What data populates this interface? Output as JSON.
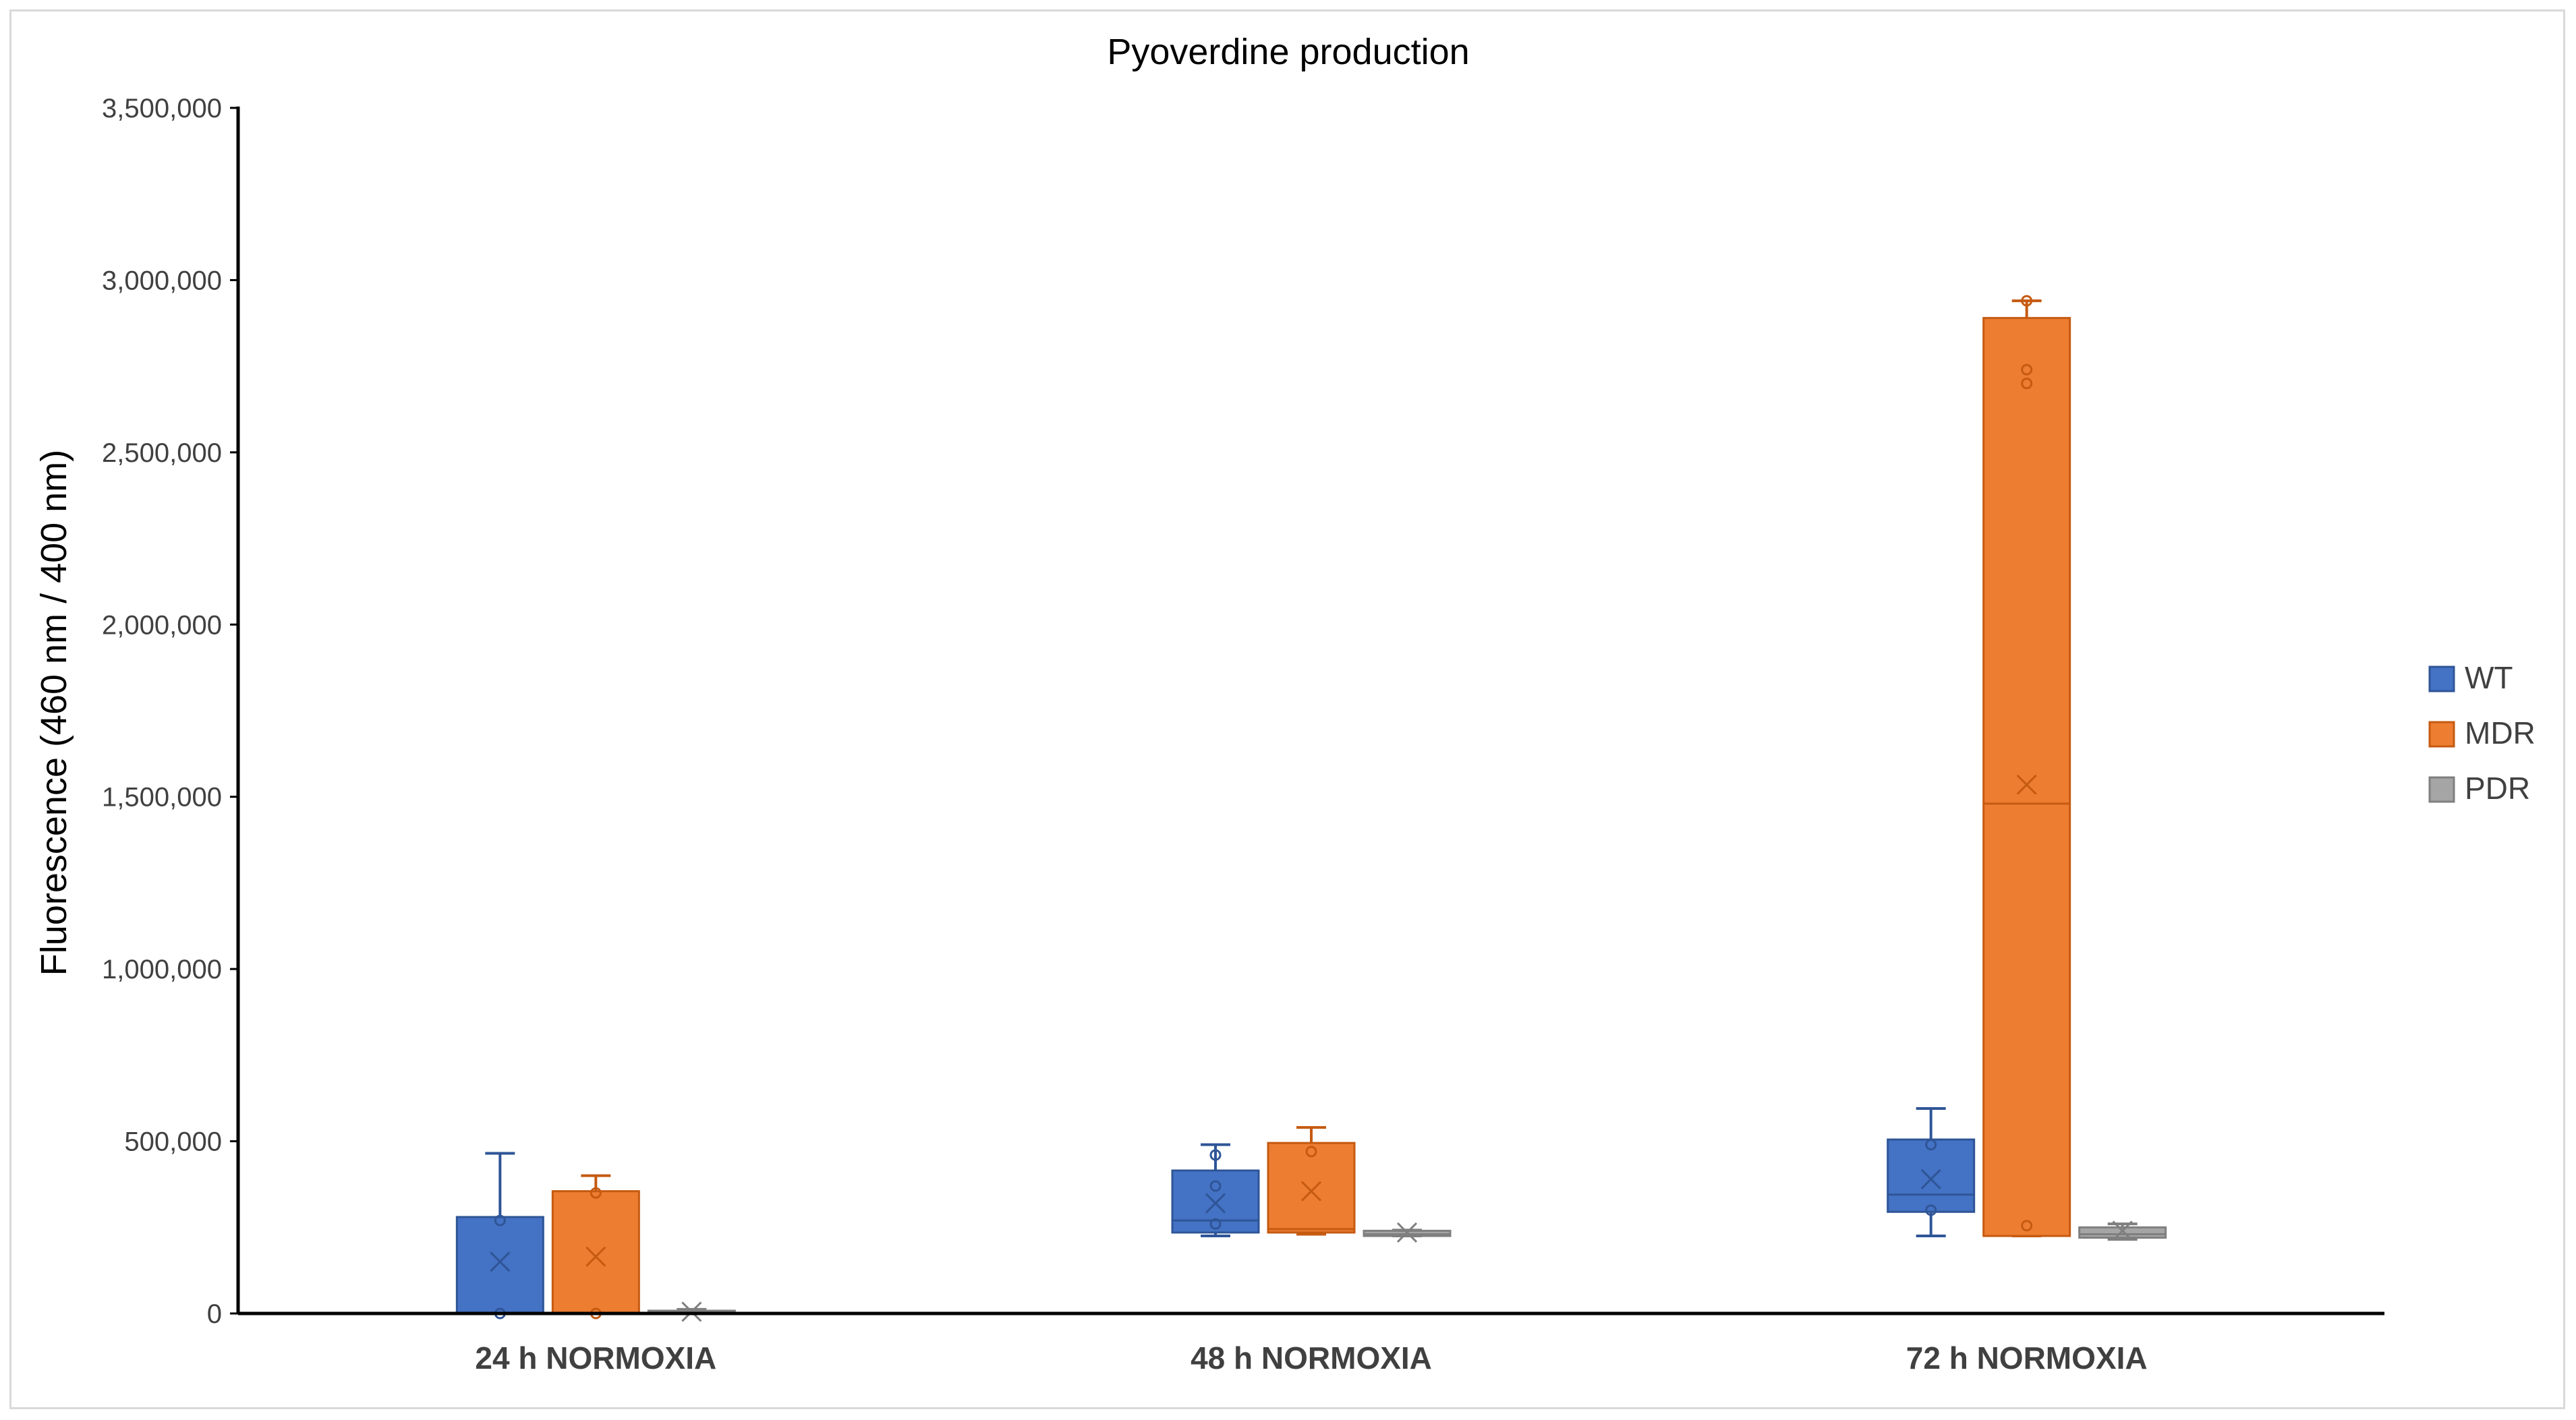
{
  "chart_data": {
    "type": "box",
    "title": "Pyoverdine production",
    "xlabel": "",
    "ylabel": "Fluorescence (460 nm / 400 nm)",
    "ylim": [
      0,
      3500000
    ],
    "yticks": [
      0,
      500000,
      1000000,
      1500000,
      2000000,
      2500000,
      3000000,
      3500000
    ],
    "ytick_labels": [
      "0",
      "500,000",
      "1,000,000",
      "1,500,000",
      "2,000,000",
      "2,500,000",
      "3,000,000",
      "3,500,000"
    ],
    "categories": [
      "24 h NORMOXIA",
      "48 h NORMOXIA",
      "72 h NORMOXIA"
    ],
    "legend_position": "right",
    "grid": false,
    "series": [
      {
        "name": "WT",
        "color": "#4472c4",
        "edge": "#2f5597",
        "boxes": [
          {
            "min": 0,
            "q1": 0,
            "median": 0,
            "q3": 280000,
            "max": 465000,
            "mean": 150000,
            "points": [
              0,
              270000
            ]
          },
          {
            "min": 225000,
            "q1": 235000,
            "median": 270000,
            "q3": 415000,
            "max": 490000,
            "mean": 320000,
            "points": [
              260000,
              370000,
              460000
            ]
          },
          {
            "min": 225000,
            "q1": 295000,
            "median": 345000,
            "q3": 505000,
            "max": 595000,
            "mean": 390000,
            "points": [
              300000,
              490000
            ]
          }
        ]
      },
      {
        "name": "MDR",
        "color": "#ed7d31",
        "edge": "#c55a11",
        "boxes": [
          {
            "min": 0,
            "q1": 0,
            "median": 0,
            "q3": 355000,
            "max": 400000,
            "mean": 165000,
            "points": [
              0,
              350000
            ]
          },
          {
            "min": 230000,
            "q1": 235000,
            "median": 245000,
            "q3": 495000,
            "max": 540000,
            "mean": 355000,
            "points": [
              470000
            ]
          },
          {
            "min": 225000,
            "q1": 225000,
            "median": 1480000,
            "q3": 2890000,
            "max": 2940000,
            "mean": 1535000,
            "points": [
              255000,
              2700000,
              2740000,
              2940000
            ]
          }
        ]
      },
      {
        "name": "PDR",
        "color": "#a5a5a5",
        "edge": "#7f7f7f",
        "boxes": [
          {
            "min": 0,
            "q1": 0,
            "median": 0,
            "q3": 8000,
            "max": 12000,
            "mean": 5000,
            "points": []
          },
          {
            "min": 225000,
            "q1": 225000,
            "median": 230000,
            "q3": 240000,
            "max": 242000,
            "mean": 235000,
            "points": []
          },
          {
            "min": 215000,
            "q1": 220000,
            "median": 230000,
            "q3": 250000,
            "max": 260000,
            "mean": 240000,
            "points": []
          }
        ]
      }
    ]
  }
}
